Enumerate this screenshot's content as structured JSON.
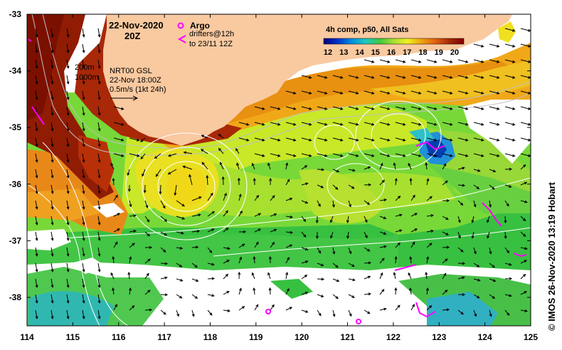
{
  "title": {
    "date": "22-Nov-2020",
    "time": "20Z"
  },
  "legend_argo": {
    "argo_label": "Argo",
    "drifters_line1": "drifters@12h",
    "drifters_line2": "to 23/11 12Z"
  },
  "contours": {
    "depth_200": "200m",
    "depth_1000": "1000m"
  },
  "currents": {
    "source": "NRT00 GSL",
    "datetime": "22-Nov 18:00Z",
    "scale": "0.5m/s (1kt 24h)"
  },
  "colorbar": {
    "title": "4h comp, p50, All Sats",
    "ticks": [
      "12",
      "13",
      "14",
      "15",
      "16",
      "17",
      "18",
      "19",
      "20"
    ],
    "colors": [
      "#00007f",
      "#0030c8",
      "#0090e0",
      "#20c8c0",
      "#40c840",
      "#a8e030",
      "#f0f020",
      "#f0a010",
      "#e06010",
      "#a02808",
      "#800000"
    ]
  },
  "axes": {
    "lon_ticks": [
      "114",
      "115",
      "116",
      "117",
      "118",
      "119",
      "120",
      "121",
      "122",
      "123",
      "124",
      "125"
    ],
    "lat_ticks": [
      "-33",
      "-34",
      "-35",
      "-36",
      "-37",
      "-38"
    ]
  },
  "credit": "© IMOS 26-Nov-2020 13:19 Hobart",
  "colors": {
    "land": "#f9c9a0",
    "argo": "#ff00ff"
  }
}
